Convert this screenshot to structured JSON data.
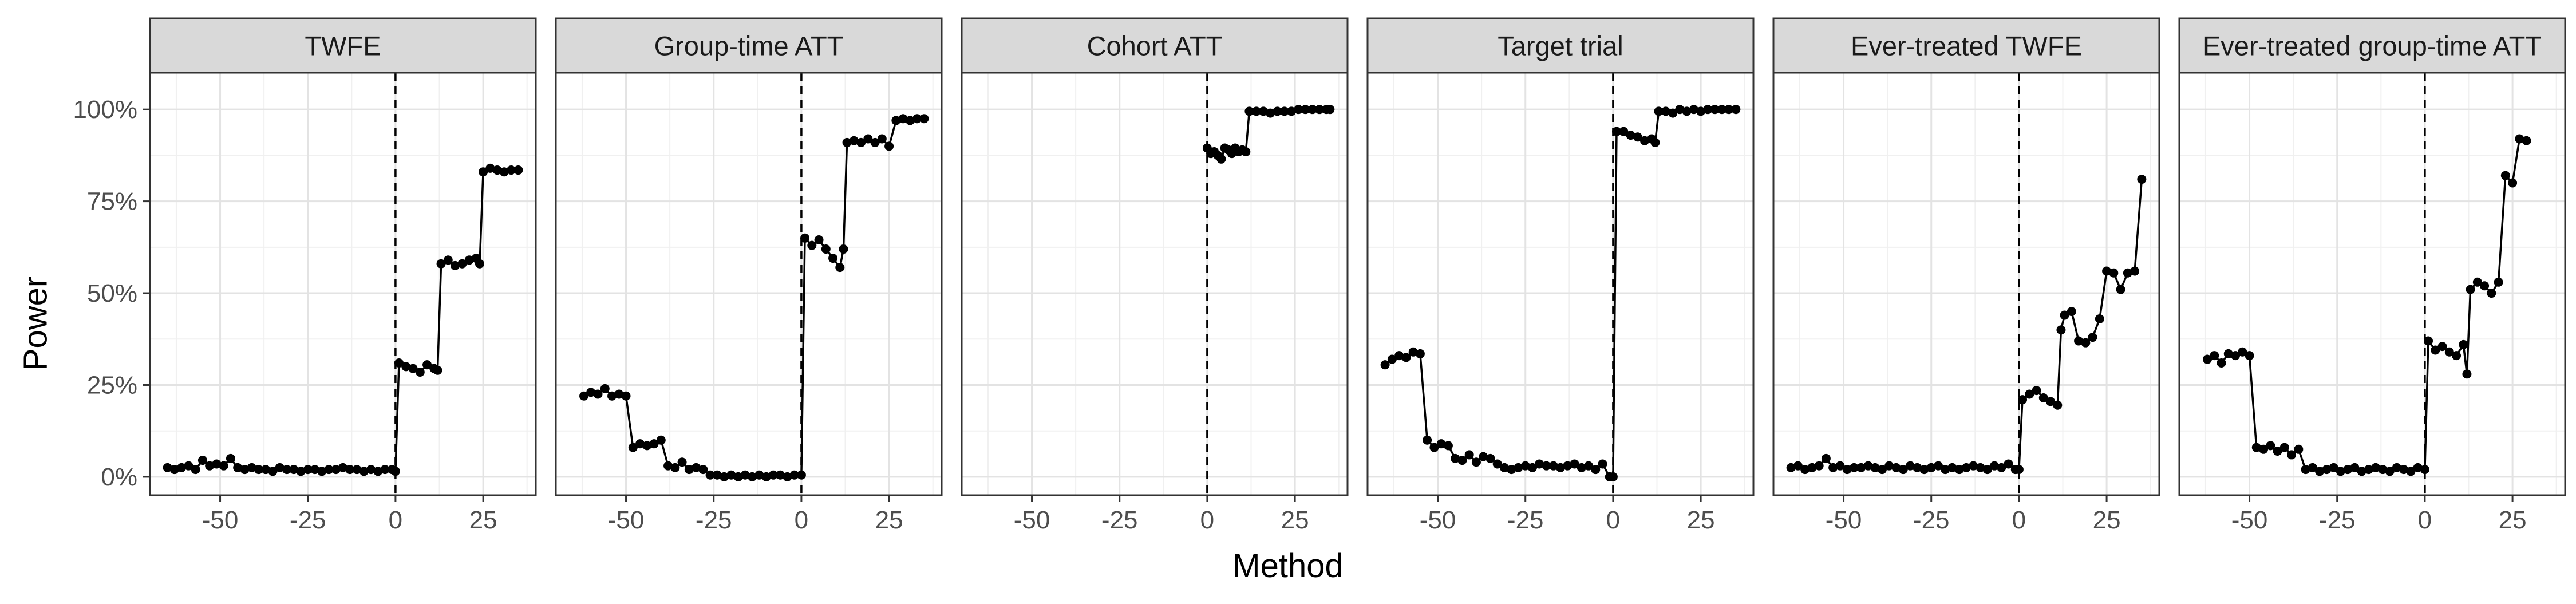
{
  "chart_data": {
    "type": "line",
    "xlabel": "Method",
    "ylabel": "Power",
    "xlim": [
      -70,
      40
    ],
    "ylim": [
      -0.05,
      1.1
    ],
    "x_ticks": [
      -50,
      -25,
      0,
      25
    ],
    "x_tick_labels": [
      "-50",
      "-25",
      "0",
      "25"
    ],
    "y_ticks": [
      0,
      0.25,
      0.5,
      0.75,
      1.0
    ],
    "y_tick_labels": [
      "0%",
      "25%",
      "50%",
      "75%",
      "100%"
    ],
    "reference_line": {
      "x": 0,
      "style": "dashed"
    },
    "grid": true,
    "panels": [
      {
        "title": "TWFE",
        "x": [
          -65,
          -63,
          -61,
          -59,
          -57,
          -55,
          -53,
          -51,
          -49,
          -47,
          -45,
          -43,
          -41,
          -39,
          -37,
          -35,
          -33,
          -31,
          -29,
          -27,
          -25,
          -23,
          -21,
          -19,
          -17,
          -15,
          -13,
          -11,
          -9,
          -7,
          -5,
          -3,
          -1,
          0,
          1,
          3,
          5,
          7,
          9,
          11,
          12,
          13,
          15,
          17,
          19,
          21,
          23,
          24,
          25,
          27,
          29,
          31,
          33,
          35
        ],
        "y": [
          0.025,
          0.02,
          0.025,
          0.03,
          0.02,
          0.045,
          0.03,
          0.035,
          0.03,
          0.05,
          0.025,
          0.02,
          0.025,
          0.02,
          0.02,
          0.015,
          0.025,
          0.02,
          0.02,
          0.015,
          0.02,
          0.02,
          0.015,
          0.02,
          0.02,
          0.025,
          0.02,
          0.02,
          0.015,
          0.02,
          0.015,
          0.02,
          0.02,
          0.015,
          0.31,
          0.3,
          0.295,
          0.285,
          0.305,
          0.295,
          0.29,
          0.58,
          0.59,
          0.575,
          0.58,
          0.59,
          0.595,
          0.58,
          0.83,
          0.84,
          0.835,
          0.83,
          0.835,
          0.835
        ]
      },
      {
        "title": "Group-time ATT",
        "x": [
          -62,
          -60,
          -58,
          -56,
          -54,
          -52,
          -50,
          -48,
          -46,
          -44,
          -42,
          -40,
          -38,
          -36,
          -34,
          -32,
          -30,
          -28,
          -26,
          -24,
          -22,
          -20,
          -18,
          -16,
          -14,
          -12,
          -10,
          -8,
          -6,
          -4,
          -2,
          0,
          1,
          3,
          5,
          7,
          9,
          11,
          12,
          13,
          15,
          17,
          19,
          21,
          23,
          25,
          27,
          29,
          31,
          33,
          35
        ],
        "y": [
          0.22,
          0.23,
          0.225,
          0.24,
          0.22,
          0.225,
          0.22,
          0.08,
          0.09,
          0.085,
          0.09,
          0.1,
          0.03,
          0.025,
          0.04,
          0.02,
          0.025,
          0.02,
          0.005,
          0.005,
          0.0,
          0.005,
          0.0,
          0.005,
          0.0,
          0.005,
          0.0,
          0.005,
          0.005,
          0.0,
          0.005,
          0.005,
          0.65,
          0.63,
          0.645,
          0.62,
          0.595,
          0.57,
          0.62,
          0.91,
          0.915,
          0.91,
          0.92,
          0.91,
          0.92,
          0.9,
          0.97,
          0.975,
          0.97,
          0.975,
          0.975
        ]
      },
      {
        "title": "Cohort ATT",
        "x": [
          0,
          1,
          2,
          3,
          4,
          5,
          6,
          7,
          8,
          9,
          10,
          11,
          12,
          14,
          16,
          18,
          20,
          22,
          24,
          26,
          28,
          30,
          32,
          34,
          35
        ],
        "y": [
          0.895,
          0.88,
          0.885,
          0.875,
          0.865,
          0.895,
          0.89,
          0.88,
          0.895,
          0.885,
          0.89,
          0.885,
          0.995,
          0.995,
          0.995,
          0.99,
          0.995,
          0.995,
          0.995,
          1.0,
          1.0,
          1.0,
          1.0,
          1.0,
          1.0
        ]
      },
      {
        "title": "Target trial",
        "x": [
          -65,
          -63,
          -61,
          -59,
          -57,
          -55,
          -53,
          -51,
          -49,
          -47,
          -45,
          -43,
          -41,
          -39,
          -37,
          -35,
          -33,
          -31,
          -29,
          -27,
          -25,
          -23,
          -21,
          -19,
          -17,
          -15,
          -13,
          -11,
          -9,
          -7,
          -5,
          -3,
          -1,
          0,
          1,
          3,
          5,
          7,
          9,
          11,
          12,
          13,
          15,
          17,
          19,
          21,
          23,
          25,
          27,
          29,
          31,
          33,
          35
        ],
        "y": [
          0.305,
          0.32,
          0.33,
          0.325,
          0.34,
          0.335,
          0.1,
          0.08,
          0.09,
          0.085,
          0.05,
          0.045,
          0.06,
          0.04,
          0.055,
          0.05,
          0.035,
          0.025,
          0.02,
          0.025,
          0.03,
          0.025,
          0.035,
          0.03,
          0.03,
          0.025,
          0.03,
          0.035,
          0.025,
          0.03,
          0.02,
          0.035,
          0.0,
          0.0,
          0.94,
          0.94,
          0.93,
          0.925,
          0.915,
          0.92,
          0.91,
          0.995,
          0.995,
          0.99,
          1.0,
          0.995,
          1.0,
          0.995,
          1.0,
          1.0,
          1.0,
          1.0,
          1.0
        ]
      },
      {
        "title": "Ever-treated TWFE",
        "x": [
          -65,
          -63,
          -61,
          -59,
          -57,
          -55,
          -53,
          -51,
          -49,
          -47,
          -45,
          -43,
          -41,
          -39,
          -37,
          -35,
          -33,
          -31,
          -29,
          -27,
          -25,
          -23,
          -21,
          -19,
          -17,
          -15,
          -13,
          -11,
          -9,
          -7,
          -5,
          -3,
          -1,
          0,
          1,
          3,
          5,
          7,
          9,
          11,
          12,
          13,
          15,
          17,
          19,
          21,
          23,
          25,
          27,
          29,
          31,
          33,
          35
        ],
        "y": [
          0.025,
          0.03,
          0.02,
          0.025,
          0.03,
          0.05,
          0.025,
          0.03,
          0.02,
          0.025,
          0.025,
          0.03,
          0.025,
          0.02,
          0.03,
          0.025,
          0.02,
          0.03,
          0.025,
          0.02,
          0.025,
          0.03,
          0.02,
          0.025,
          0.02,
          0.025,
          0.03,
          0.025,
          0.02,
          0.03,
          0.025,
          0.035,
          0.02,
          0.02,
          0.21,
          0.225,
          0.235,
          0.215,
          0.205,
          0.195,
          0.4,
          0.44,
          0.45,
          0.37,
          0.365,
          0.38,
          0.43,
          0.56,
          0.555,
          0.51,
          0.555,
          0.56,
          0.81
        ]
      },
      {
        "title": "Ever-treated group-time ATT",
        "x": [
          -62,
          -60,
          -58,
          -56,
          -54,
          -52,
          -50,
          -48,
          -46,
          -44,
          -42,
          -40,
          -38,
          -36,
          -34,
          -32,
          -30,
          -28,
          -26,
          -24,
          -22,
          -20,
          -18,
          -16,
          -14,
          -12,
          -10,
          -8,
          -6,
          -4,
          -2,
          0,
          1,
          3,
          5,
          7,
          9,
          11,
          12,
          13,
          15,
          17,
          19,
          21,
          23,
          25,
          27,
          29
        ],
        "y": [
          0.32,
          0.33,
          0.31,
          0.335,
          0.33,
          0.34,
          0.33,
          0.08,
          0.075,
          0.085,
          0.07,
          0.08,
          0.06,
          0.075,
          0.02,
          0.025,
          0.015,
          0.02,
          0.025,
          0.015,
          0.02,
          0.025,
          0.015,
          0.02,
          0.025,
          0.02,
          0.015,
          0.025,
          0.02,
          0.015,
          0.025,
          0.02,
          0.37,
          0.345,
          0.355,
          0.34,
          0.33,
          0.36,
          0.28,
          0.51,
          0.53,
          0.52,
          0.5,
          0.53,
          0.82,
          0.8,
          0.92,
          0.915
        ]
      }
    ]
  }
}
